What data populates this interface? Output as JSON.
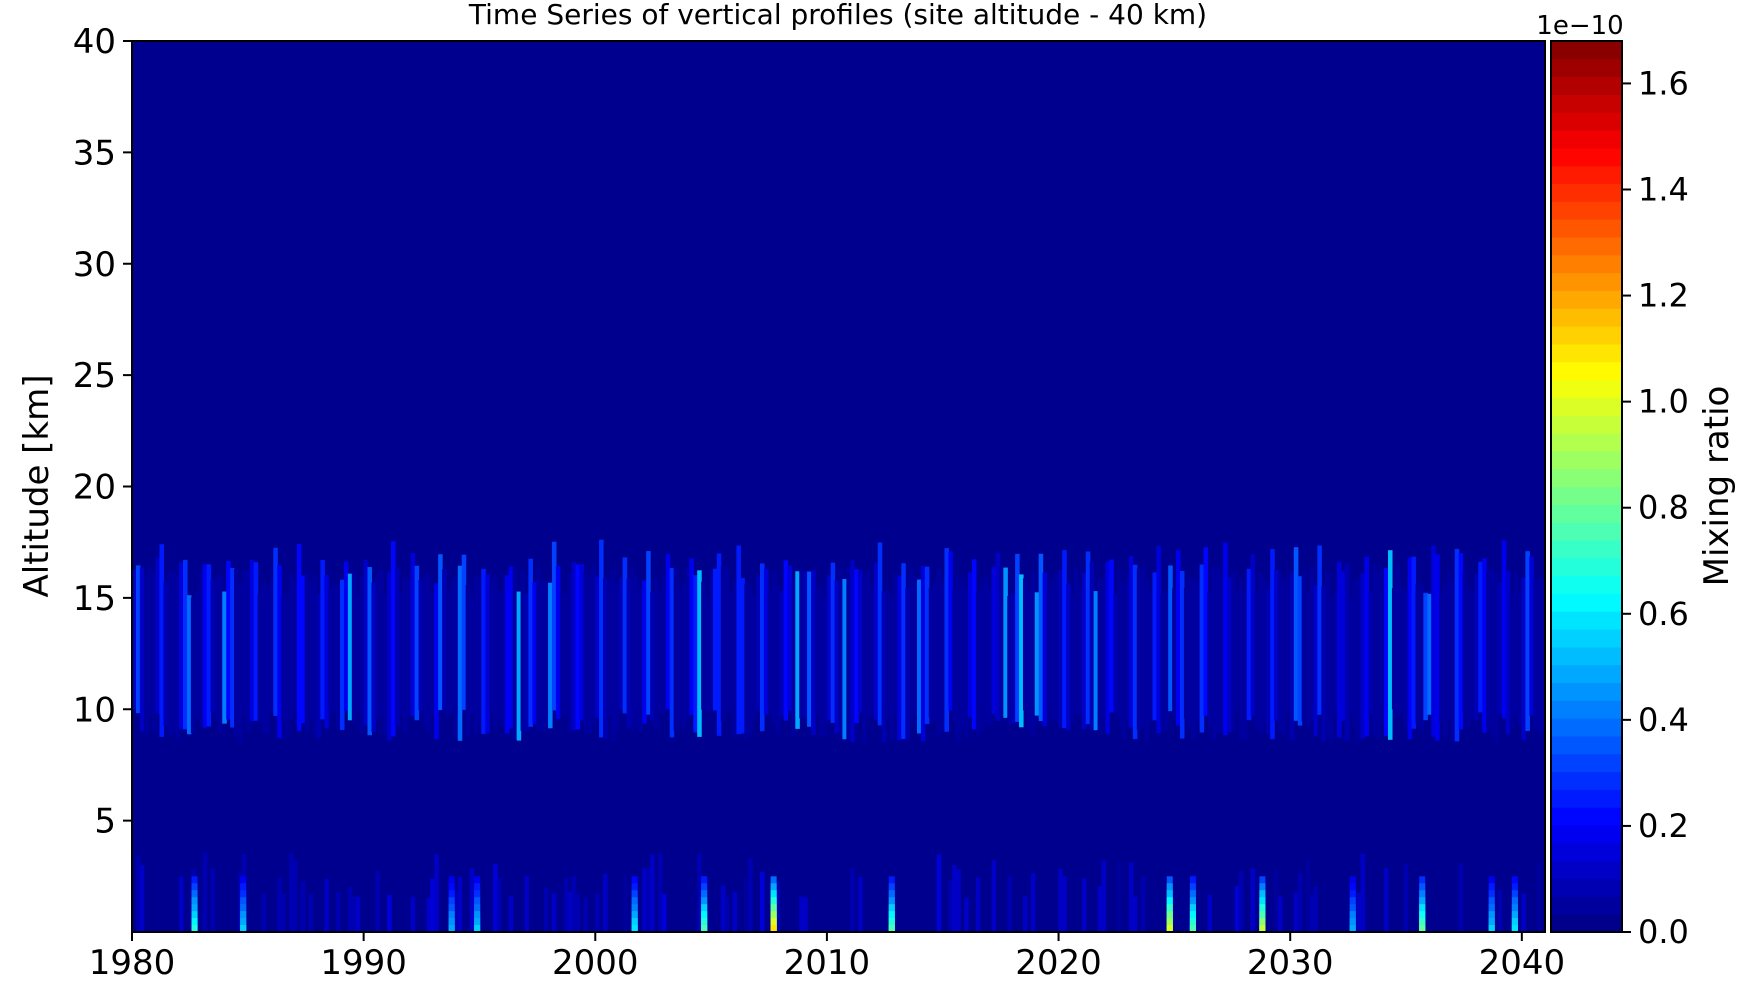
{
  "chart_data": {
    "type": "heatmap",
    "title": "Time Series of vertical profiles (site altitude - 40 km)",
    "xlabel": "",
    "ylabel": "Altitude [km]",
    "xlim": [
      1980,
      2041
    ],
    "ylim": [
      0,
      40
    ],
    "x_ticks": [
      1980,
      1990,
      2000,
      2010,
      2020,
      2030,
      2040
    ],
    "x_tick_labels": [
      "1980",
      "1990",
      "2000",
      "2010",
      "2020",
      "2030",
      "2040"
    ],
    "y_ticks": [
      5,
      10,
      15,
      20,
      25,
      30,
      35,
      40
    ],
    "y_tick_labels": [
      "5",
      "10",
      "15",
      "20",
      "25",
      "30",
      "35",
      "40"
    ],
    "colormap": "jet",
    "colorbar": {
      "label": "Mixing ratio",
      "exponent_label": "1e−10",
      "vmin": 0.0,
      "vmax": 1.68,
      "ticks": [
        0.0,
        0.2,
        0.4,
        0.6,
        0.8,
        1.0,
        1.2,
        1.4,
        1.6
      ],
      "tick_labels": [
        "0.0",
        "0.2",
        "0.4",
        "0.6",
        "0.8",
        "1.0",
        "1.2",
        "1.4",
        "1.6"
      ]
    },
    "background_value": 0.0,
    "band_layers": [
      {
        "altitude_range_km": [
          8.5,
          17.5
        ],
        "typical_value": 0.15,
        "peak_value": 0.55
      },
      {
        "altitude_range_km": [
          0,
          3
        ],
        "typical_value": 0.1,
        "peak_value": 1.1
      }
    ],
    "surface_peaks": [
      {
        "year": 1982.7,
        "value": 0.7
      },
      {
        "year": 1984.8,
        "value": 0.55
      },
      {
        "year": 1993.8,
        "value": 0.5
      },
      {
        "year": 1994.9,
        "value": 0.55
      },
      {
        "year": 2001.7,
        "value": 0.6
      },
      {
        "year": 2004.7,
        "value": 0.75
      },
      {
        "year": 2007.7,
        "value": 1.1
      },
      {
        "year": 2012.8,
        "value": 0.75
      },
      {
        "year": 2024.8,
        "value": 1.0
      },
      {
        "year": 2025.8,
        "value": 0.75
      },
      {
        "year": 2028.8,
        "value": 0.95
      },
      {
        "year": 2032.7,
        "value": 0.5
      },
      {
        "year": 2035.7,
        "value": 0.8
      },
      {
        "year": 2038.7,
        "value": 0.55
      },
      {
        "year": 2039.7,
        "value": 0.6
      }
    ]
  }
}
